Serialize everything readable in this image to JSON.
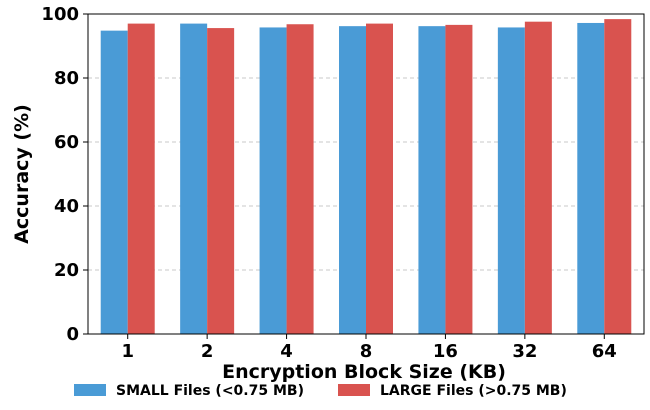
{
  "chart_data": {
    "type": "bar",
    "title": "",
    "xlabel": "Encryption Block Size (KB)",
    "ylabel": "Accuracy (%)",
    "categories": [
      "1",
      "2",
      "4",
      "8",
      "16",
      "32",
      "64"
    ],
    "ylim": [
      0,
      100
    ],
    "yticks": [
      "0",
      "20",
      "40",
      "60",
      "80",
      "100"
    ],
    "grid": "horizontal dashed",
    "legend_position": "bottom",
    "series": [
      {
        "name": "SMALL Files (<0.75 MB)",
        "color": "#4a9bd6",
        "values": [
          94.8,
          97.0,
          95.8,
          96.2,
          96.2,
          95.8,
          97.2
        ]
      },
      {
        "name": "LARGE Files (>0.75 MB)",
        "color": "#d9534f",
        "values": [
          97.0,
          95.6,
          96.8,
          97.0,
          96.6,
          97.6,
          98.4
        ]
      }
    ]
  }
}
